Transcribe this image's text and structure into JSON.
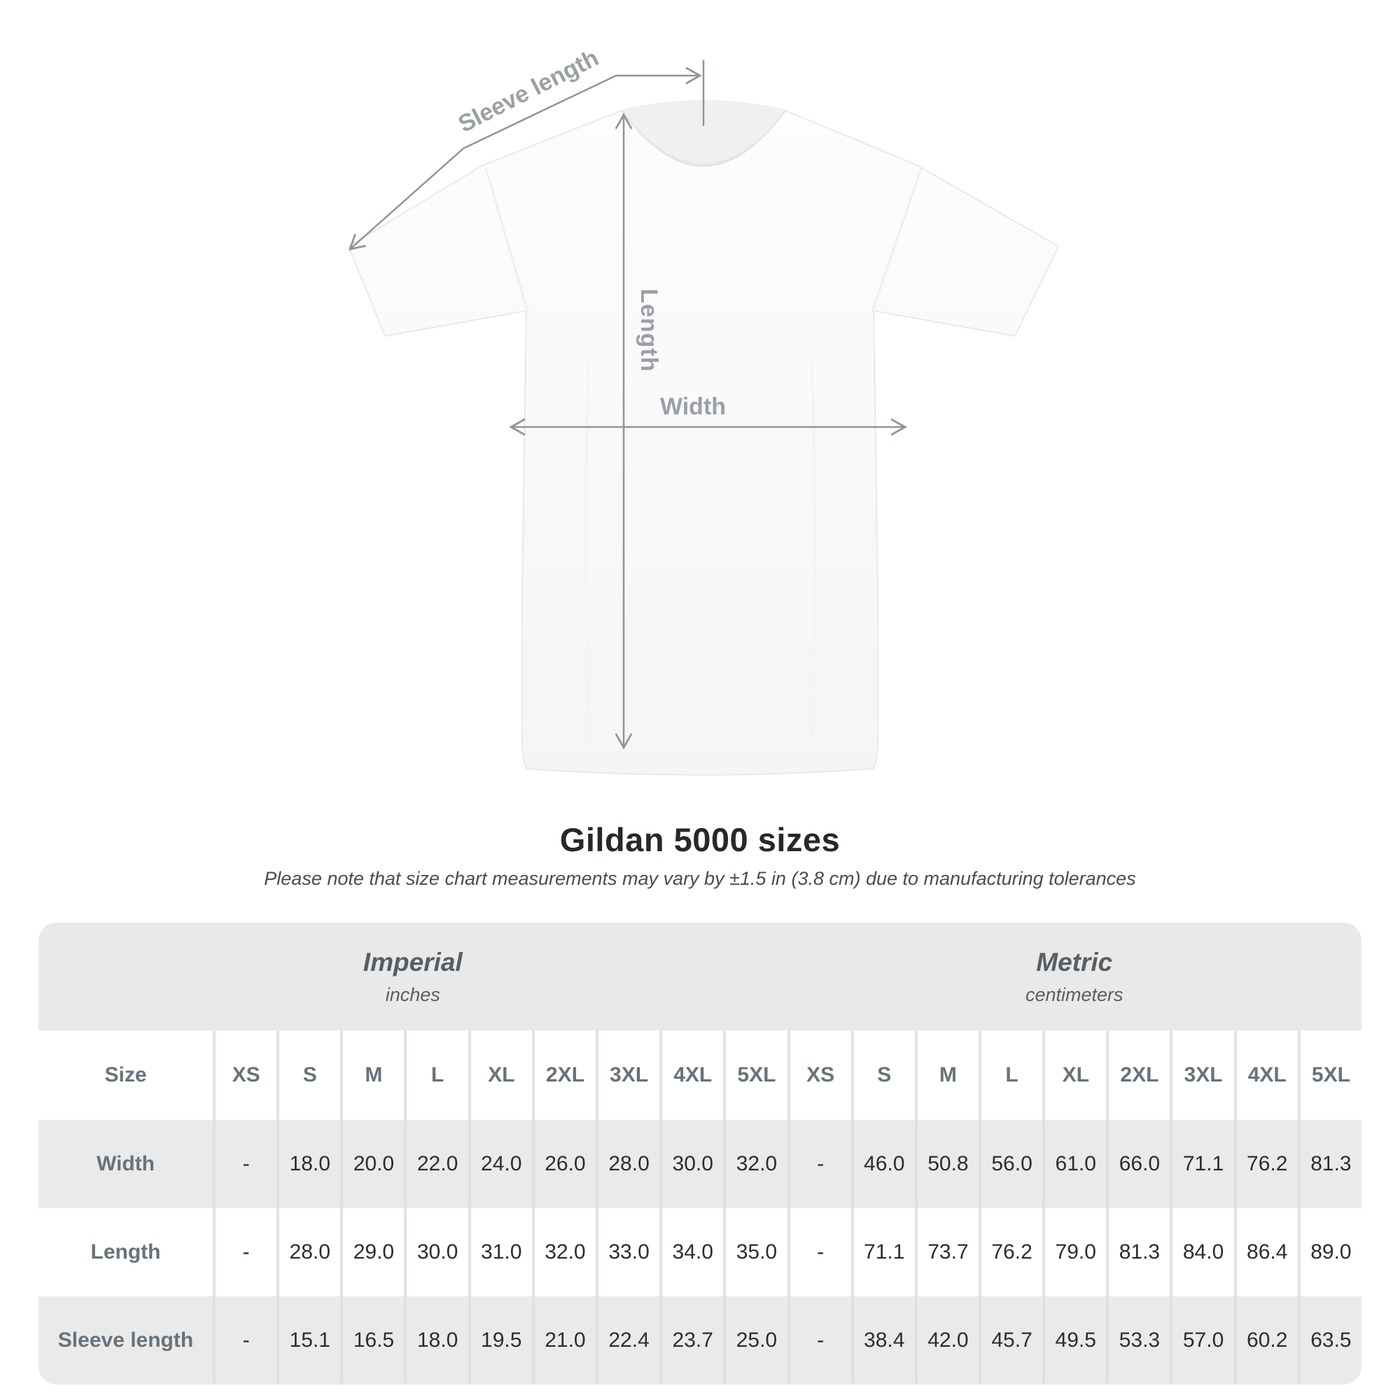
{
  "diagram": {
    "sleeve_length_label": "Sleeve length",
    "length_label": "Length",
    "width_label": "Width"
  },
  "header": {
    "title": "Gildan 5000 sizes",
    "subtitle": "Please note that size chart measurements may vary by ±1.5 in (3.8 cm) due to manufacturing tolerances"
  },
  "colors": {
    "dimension_line": "#8f959a",
    "diagram_label": "#9ba0a4",
    "table_band_bg": "#e9e9ea",
    "table_shade_row_bg": "#eaeaeb"
  },
  "table": {
    "size_header": "Size",
    "unit_groups": [
      {
        "label": "Imperial",
        "sublabel": "inches"
      },
      {
        "label": "Metric",
        "sublabel": "centimeters"
      }
    ],
    "sizes": [
      "XS",
      "S",
      "M",
      "L",
      "XL",
      "2XL",
      "3XL",
      "4XL",
      "5XL"
    ],
    "rows": [
      {
        "label": "Width",
        "imperial": [
          "-",
          "18.0",
          "20.0",
          "22.0",
          "24.0",
          "26.0",
          "28.0",
          "30.0",
          "32.0"
        ],
        "metric": [
          "-",
          "46.0",
          "50.8",
          "56.0",
          "61.0",
          "66.0",
          "71.1",
          "76.2",
          "81.3"
        ]
      },
      {
        "label": "Length",
        "imperial": [
          "-",
          "28.0",
          "29.0",
          "30.0",
          "31.0",
          "32.0",
          "33.0",
          "34.0",
          "35.0"
        ],
        "metric": [
          "-",
          "71.1",
          "73.7",
          "76.2",
          "79.0",
          "81.3",
          "84.0",
          "86.4",
          "89.0"
        ]
      },
      {
        "label": "Sleeve length",
        "imperial": [
          "-",
          "15.1",
          "16.5",
          "18.0",
          "19.5",
          "21.0",
          "22.4",
          "23.7",
          "25.0"
        ],
        "metric": [
          "-",
          "38.4",
          "42.0",
          "45.7",
          "49.5",
          "53.3",
          "57.0",
          "60.2",
          "63.5"
        ]
      }
    ]
  }
}
